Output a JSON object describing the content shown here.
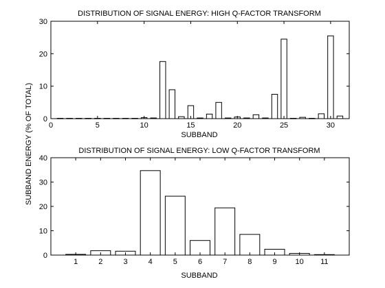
{
  "chart_data": [
    {
      "type": "bar",
      "title": "DISTRIBUTION OF SIGNAL ENERGY: HIGH Q-FACTOR TRANSFORM",
      "xlabel": "SUBBAND",
      "ylabel": "SUBBAND ENERGY (% OF TOTAL)",
      "xlim": [
        0,
        32
      ],
      "ylim": [
        0,
        30
      ],
      "xticks": [
        0,
        5,
        10,
        15,
        20,
        25,
        30
      ],
      "yticks": [
        0,
        10,
        20,
        30
      ],
      "grid": false,
      "x": [
        1,
        2,
        3,
        4,
        5,
        6,
        7,
        8,
        9,
        10,
        11,
        12,
        13,
        14,
        15,
        16,
        17,
        18,
        19,
        20,
        21,
        22,
        23,
        24,
        25,
        26,
        27,
        28,
        29,
        30,
        31
      ],
      "values": [
        0.1,
        0.1,
        0.1,
        0.1,
        0.1,
        0.1,
        0.1,
        0.1,
        0.1,
        0.3,
        0.2,
        17.6,
        8.9,
        0.6,
        4.0,
        0.2,
        1.4,
        5.0,
        0.2,
        0.5,
        0.2,
        1.2,
        0.2,
        7.5,
        24.5,
        0.1,
        0.4,
        0.1,
        1.5,
        25.5,
        0.8
      ]
    },
    {
      "type": "bar",
      "title": "DISTRIBUTION OF SIGNAL ENERGY: LOW Q-FACTOR TRANSFORM",
      "xlabel": "SUBBAND",
      "ylabel": "SUBBAND ENERGY (% OF TOTAL)",
      "xlim": [
        0,
        12
      ],
      "ylim": [
        0,
        40
      ],
      "xticks": [
        1,
        2,
        3,
        4,
        5,
        6,
        7,
        8,
        9,
        10,
        11
      ],
      "yticks": [
        0,
        10,
        20,
        30,
        40
      ],
      "grid": false,
      "x": [
        1,
        2,
        3,
        4,
        5,
        6,
        7,
        8,
        9,
        10,
        11
      ],
      "values": [
        0.3,
        1.8,
        1.6,
        34.7,
        24.2,
        6.0,
        19.4,
        8.5,
        2.4,
        0.7,
        0.2
      ]
    }
  ]
}
